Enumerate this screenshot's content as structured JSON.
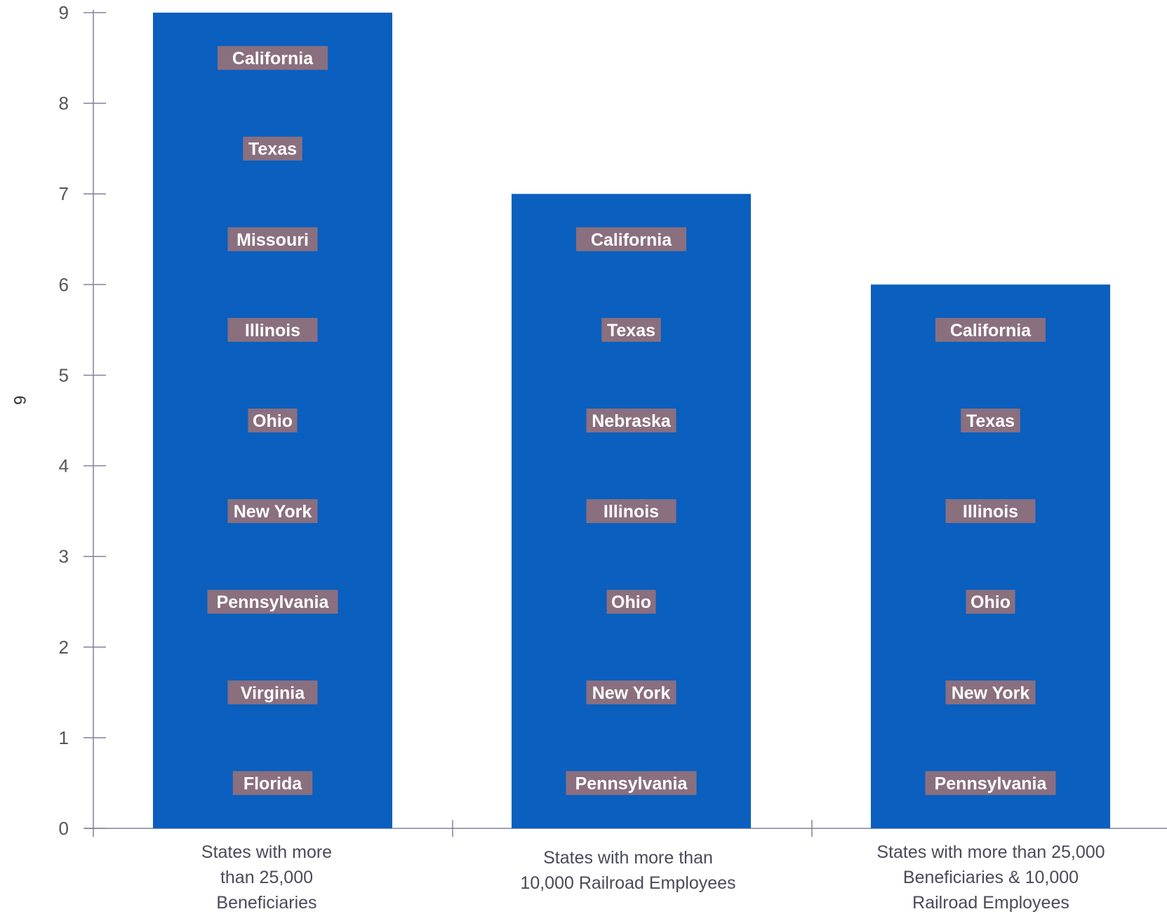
{
  "chart_data": {
    "type": "bar",
    "ylabel": "6",
    "ylim": [
      0,
      9
    ],
    "yticks": [
      "0",
      "1",
      "2",
      "3",
      "4",
      "5",
      "6",
      "7",
      "8",
      "9"
    ],
    "categories": [
      [
        "States with more",
        "than 25,000",
        "Beneficiaries"
      ],
      [
        "States with more than",
        "10,000 Railroad Employees"
      ],
      [
        "States with more than 25,000",
        "Beneficiaries & 10,000",
        "Railroad Employees"
      ]
    ],
    "values": [
      9,
      7,
      6
    ],
    "segment_labels": [
      [
        "Florida",
        "Virginia",
        "Pennsylvania",
        "New York",
        "Ohio",
        "Illinois",
        "Missouri",
        "Texas",
        "California"
      ],
      [
        "Pennsylvania",
        "New York",
        "Ohio",
        "Illinois",
        "Nebraska",
        "Texas",
        "California"
      ],
      [
        "Pennsylvania",
        "New York",
        "Ohio",
        "Illinois",
        "Texas",
        "California"
      ]
    ],
    "colors": {
      "bar": "#0a5fbf",
      "label_bg": "#8a6f7f",
      "axis": "#8080a0"
    },
    "grid": false
  }
}
